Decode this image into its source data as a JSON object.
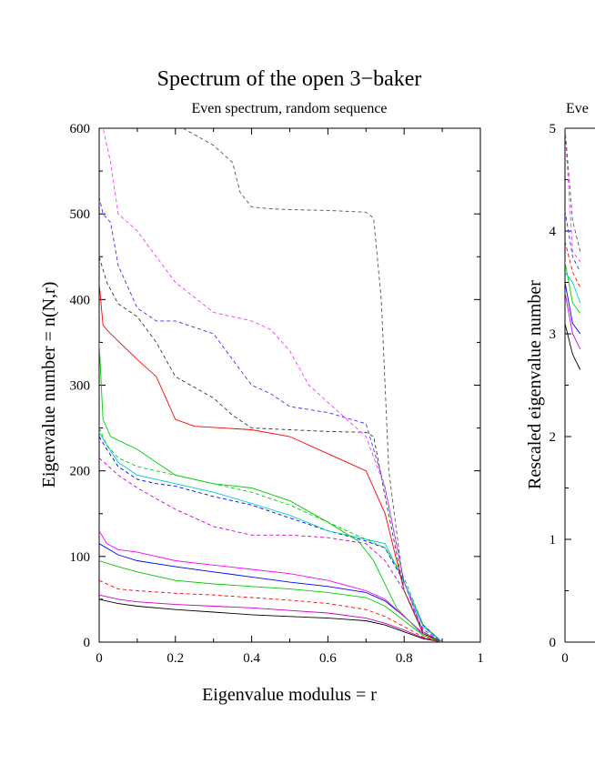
{
  "chart_data": [
    {
      "type": "line",
      "title": "Spectrum of the open 3−baker",
      "subtitle": "Even spectrum, random sequence",
      "xlabel": "Eigenvalue modulus = r",
      "ylabel": "Eigenvalue number = n(N,r)",
      "xlim": [
        0,
        1
      ],
      "ylim": [
        0,
        600
      ],
      "x_ticks": [
        "0",
        "0.2",
        "0.4",
        "0.6",
        "0.8",
        "1"
      ],
      "y_ticks": [
        "0",
        "100",
        "200",
        "300",
        "400",
        "500",
        "600"
      ],
      "grid": false,
      "legend": "none",
      "series": [
        {
          "color": "#000000",
          "dash": "solid",
          "x": [
            0,
            0.05,
            0.1,
            0.2,
            0.3,
            0.4,
            0.5,
            0.6,
            0.7,
            0.75,
            0.8,
            0.85,
            0.9
          ],
          "y": [
            50,
            45,
            42,
            38,
            35,
            32,
            30,
            28,
            25,
            20,
            12,
            4,
            0
          ]
        },
        {
          "color": "#cc00cc",
          "dash": "solid",
          "x": [
            0,
            0.05,
            0.1,
            0.2,
            0.3,
            0.4,
            0.5,
            0.6,
            0.7,
            0.75,
            0.8,
            0.85,
            0.9
          ],
          "y": [
            55,
            50,
            47,
            44,
            42,
            40,
            37,
            34,
            28,
            22,
            14,
            5,
            0
          ]
        },
        {
          "color": "#ff0000",
          "dash": "dashed",
          "x": [
            0,
            0.05,
            0.1,
            0.2,
            0.3,
            0.4,
            0.5,
            0.6,
            0.7,
            0.75,
            0.8,
            0.85,
            0.9
          ],
          "y": [
            72,
            62,
            60,
            57,
            55,
            52,
            49,
            45,
            38,
            30,
            18,
            6,
            0
          ]
        },
        {
          "color": "#00cc00",
          "dash": "solid",
          "x": [
            0,
            0.05,
            0.1,
            0.2,
            0.3,
            0.4,
            0.5,
            0.6,
            0.7,
            0.75,
            0.8,
            0.85,
            0.9
          ],
          "y": [
            95,
            88,
            82,
            72,
            68,
            65,
            62,
            58,
            52,
            42,
            25,
            8,
            0
          ]
        },
        {
          "color": "#0000ff",
          "dash": "solid",
          "x": [
            0,
            0.05,
            0.1,
            0.2,
            0.3,
            0.4,
            0.5,
            0.6,
            0.7,
            0.75,
            0.8,
            0.85,
            0.9
          ],
          "y": [
            115,
            102,
            95,
            88,
            82,
            76,
            70,
            65,
            58,
            48,
            30,
            10,
            0
          ]
        },
        {
          "color": "#ff00ff",
          "dash": "solid",
          "x": [
            0,
            0.02,
            0.05,
            0.1,
            0.2,
            0.3,
            0.4,
            0.5,
            0.6,
            0.7,
            0.75,
            0.8,
            0.85,
            0.9
          ],
          "y": [
            130,
            115,
            108,
            105,
            95,
            90,
            85,
            80,
            72,
            60,
            50,
            30,
            10,
            0
          ]
        },
        {
          "color": "#cc00cc",
          "dash": "dashed",
          "x": [
            0,
            0.05,
            0.1,
            0.2,
            0.3,
            0.4,
            0.5,
            0.6,
            0.7,
            0.75,
            0.8,
            0.85,
            0.9
          ],
          "y": [
            215,
            195,
            180,
            155,
            135,
            125,
            125,
            122,
            115,
            95,
            60,
            15,
            0
          ]
        },
        {
          "color": "#0000ff",
          "dash": "dashed",
          "x": [
            0,
            0.02,
            0.05,
            0.1,
            0.15,
            0.2,
            0.3,
            0.4,
            0.5,
            0.6,
            0.7,
            0.75,
            0.8,
            0.85,
            0.9
          ],
          "y": [
            240,
            225,
            205,
            190,
            185,
            182,
            170,
            160,
            145,
            130,
            118,
            110,
            70,
            20,
            0
          ]
        },
        {
          "color": "#00cccc",
          "dash": "solid",
          "x": [
            0,
            0.02,
            0.05,
            0.1,
            0.2,
            0.3,
            0.4,
            0.5,
            0.6,
            0.7,
            0.75,
            0.8,
            0.85,
            0.9
          ],
          "y": [
            245,
            230,
            210,
            195,
            185,
            175,
            162,
            148,
            130,
            120,
            115,
            70,
            18,
            0
          ]
        },
        {
          "color": "#00cc00",
          "dash": "dashed",
          "x": [
            0,
            0.02,
            0.05,
            0.1,
            0.2,
            0.3,
            0.4,
            0.5,
            0.6,
            0.7,
            0.75,
            0.8,
            0.85,
            0.9
          ],
          "y": [
            250,
            230,
            215,
            205,
            195,
            185,
            175,
            160,
            140,
            120,
            110,
            75,
            20,
            0
          ]
        },
        {
          "color": "#00cc00",
          "dash": "solid",
          "x": [
            0,
            0.01,
            0.03,
            0.1,
            0.15,
            0.2,
            0.3,
            0.4,
            0.5,
            0.6,
            0.68,
            0.72,
            0.78,
            0.85,
            0.9
          ],
          "y": [
            350,
            260,
            240,
            225,
            210,
            195,
            185,
            180,
            165,
            140,
            118,
            95,
            40,
            8,
            0
          ]
        },
        {
          "color": "#ff0000",
          "dash": "solid",
          "x": [
            0,
            0.01,
            0.03,
            0.1,
            0.15,
            0.2,
            0.25,
            0.4,
            0.5,
            0.6,
            0.7,
            0.75,
            0.8,
            0.85,
            0.9
          ],
          "y": [
            420,
            370,
            360,
            330,
            310,
            260,
            252,
            248,
            240,
            220,
            200,
            150,
            60,
            10,
            0
          ]
        },
        {
          "color": "#333333",
          "dash": "dashed",
          "x": [
            0,
            0.02,
            0.05,
            0.1,
            0.15,
            0.2,
            0.3,
            0.35,
            0.4,
            0.5,
            0.6,
            0.7,
            0.72,
            0.75,
            0.8,
            0.85,
            0.9
          ],
          "y": [
            450,
            420,
            395,
            380,
            350,
            310,
            285,
            265,
            250,
            248,
            246,
            245,
            240,
            170,
            60,
            10,
            0
          ]
        },
        {
          "color": "#3333ff",
          "dash": "dashed",
          "x": [
            0,
            0.01,
            0.03,
            0.05,
            0.1,
            0.15,
            0.2,
            0.3,
            0.35,
            0.4,
            0.45,
            0.5,
            0.6,
            0.7,
            0.75,
            0.8,
            0.85,
            0.9
          ],
          "y": [
            520,
            500,
            490,
            440,
            390,
            375,
            375,
            360,
            330,
            300,
            290,
            275,
            268,
            255,
            180,
            70,
            12,
            0
          ]
        },
        {
          "color": "#ff33ff",
          "dash": "dashed",
          "x": [
            0,
            0.01,
            0.03,
            0.05,
            0.1,
            0.15,
            0.2,
            0.3,
            0.4,
            0.45,
            0.5,
            0.55,
            0.6,
            0.65,
            0.7,
            0.75,
            0.8,
            0.85,
            0.9
          ],
          "y": [
            620,
            600,
            560,
            500,
            480,
            450,
            420,
            385,
            375,
            365,
            340,
            300,
            280,
            260,
            240,
            180,
            70,
            12,
            0
          ]
        },
        {
          "color": "#555555",
          "dash": "dashed",
          "x": [
            0.22,
            0.3,
            0.35,
            0.37,
            0.4,
            0.45,
            0.5,
            0.6,
            0.7,
            0.72,
            0.74,
            0.76,
            0.8,
            0.85,
            0.9
          ],
          "y": [
            600,
            580,
            560,
            525,
            508,
            506,
            505,
            504,
            502,
            495,
            400,
            200,
            60,
            12,
            0
          ]
        }
      ]
    },
    {
      "type": "line",
      "subtitle": "Eve",
      "ylabel": "Rescaled eigenvalue number",
      "ylim": [
        0,
        5
      ],
      "y_ticks": [
        "0",
        "1",
        "2",
        "3",
        "4",
        "5"
      ],
      "x_ticks": [
        "0"
      ],
      "grid": false,
      "legend": "none",
      "series": [
        {
          "color": "#000000",
          "dash": "solid",
          "x": [
            0,
            0.02,
            0.04
          ],
          "y": [
            3.1,
            2.8,
            2.65
          ]
        },
        {
          "color": "#cc00cc",
          "dash": "solid",
          "x": [
            0,
            0.02,
            0.04
          ],
          "y": [
            3.4,
            3.0,
            2.85
          ]
        },
        {
          "color": "#0000ff",
          "dash": "solid",
          "x": [
            0,
            0.02,
            0.04
          ],
          "y": [
            3.5,
            3.1,
            3.0
          ]
        },
        {
          "color": "#00cc00",
          "dash": "solid",
          "x": [
            0,
            0.02,
            0.04
          ],
          "y": [
            3.7,
            3.3,
            3.2
          ]
        },
        {
          "color": "#00cccc",
          "dash": "solid",
          "x": [
            0,
            0.02,
            0.04
          ],
          "y": [
            3.6,
            3.5,
            3.3
          ]
        },
        {
          "color": "#ff0000",
          "dash": "dashed",
          "x": [
            0,
            0.02,
            0.04
          ],
          "y": [
            3.9,
            3.6,
            3.45
          ]
        },
        {
          "color": "#3333ff",
          "dash": "dashed",
          "x": [
            0,
            0.02,
            0.04
          ],
          "y": [
            4.2,
            3.75,
            3.6
          ]
        },
        {
          "color": "#ff33ff",
          "dash": "dashed",
          "x": [
            0,
            0.02,
            0.04
          ],
          "y": [
            5.0,
            3.8,
            3.7
          ]
        },
        {
          "color": "#555555",
          "dash": "dashed",
          "x": [
            0,
            0.02,
            0.04
          ],
          "y": [
            5.0,
            4.1,
            3.8
          ]
        }
      ]
    }
  ]
}
